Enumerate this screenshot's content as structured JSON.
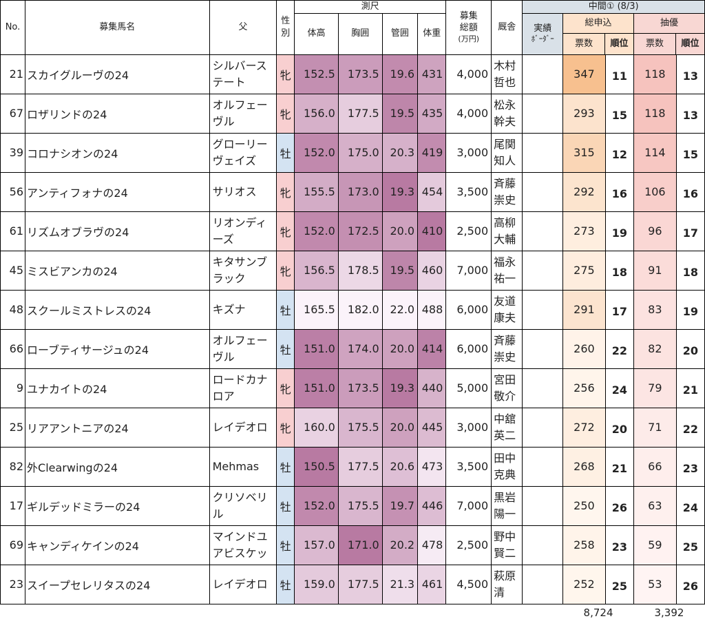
{
  "headers": {
    "no": "No.",
    "name": "募集馬名",
    "sire": "父",
    "sex": "性別",
    "measure": "測尺",
    "height": "体高",
    "girth": "胸囲",
    "cannon": "管囲",
    "weight": "体重",
    "price_top": "募集",
    "price_mid": "総額",
    "price_unit": "(万円)",
    "stable": "厩舎",
    "interim": "中間① (8/3)",
    "record_top": "実績",
    "record_bottom": "ﾎﾞｰﾀﾞｰ",
    "total_apps": "総申込",
    "lottery_pref": "抽優",
    "votes": "票数",
    "rank": "順位"
  },
  "colors": {
    "mare_sex": "#f8cfd0",
    "colt_sex": "#d4e3f2",
    "interim_header": "#d9e1e8",
    "total_header": "#fde3cc",
    "lottery_header": "#f8d7d3"
  },
  "rows": [
    {
      "no": "21",
      "name": "スカイグルーヴの24",
      "sire": "シルバーステート",
      "sex": "牝",
      "height": "152.5",
      "girth": "173.5",
      "cannon": "19.6",
      "weight": "431",
      "price": "4,000",
      "stable": "木村哲也",
      "votes": "347",
      "rank": "11",
      "lvotes": "118",
      "lrank": "13"
    },
    {
      "no": "67",
      "name": "ロザリンドの24",
      "sire": "オルフェーヴル",
      "sex": "牝",
      "height": "156.0",
      "girth": "177.5",
      "cannon": "19.5",
      "weight": "435",
      "price": "4,000",
      "stable": "松永幹夫",
      "votes": "293",
      "rank": "15",
      "lvotes": "118",
      "lrank": "13"
    },
    {
      "no": "39",
      "name": "コロナシオンの24",
      "sire": "グローリーヴェイズ",
      "sex": "牡",
      "height": "152.0",
      "girth": "175.0",
      "cannon": "20.3",
      "weight": "419",
      "price": "3,000",
      "stable": "尾関知人",
      "votes": "315",
      "rank": "12",
      "lvotes": "114",
      "lrank": "15"
    },
    {
      "no": "56",
      "name": "アンティフォナの24",
      "sire": "サリオス",
      "sex": "牝",
      "height": "155.5",
      "girth": "173.0",
      "cannon": "19.3",
      "weight": "454",
      "price": "3,500",
      "stable": "斉藤崇史",
      "votes": "292",
      "rank": "16",
      "lvotes": "106",
      "lrank": "16"
    },
    {
      "no": "61",
      "name": "リズムオブラヴの24",
      "sire": "リオンディーズ",
      "sex": "牝",
      "height": "152.0",
      "girth": "172.5",
      "cannon": "20.0",
      "weight": "410",
      "price": "2,500",
      "stable": "高柳大輔",
      "votes": "273",
      "rank": "19",
      "lvotes": "96",
      "lrank": "17"
    },
    {
      "no": "45",
      "name": "ミスビアンカの24",
      "sire": "キタサンブラック",
      "sex": "牝",
      "height": "156.5",
      "girth": "178.5",
      "cannon": "19.5",
      "weight": "460",
      "price": "7,000",
      "stable": "福永祐一",
      "votes": "275",
      "rank": "18",
      "lvotes": "91",
      "lrank": "18"
    },
    {
      "no": "48",
      "name": "スクールミストレスの24",
      "sire": "キズナ",
      "sex": "牡",
      "height": "165.5",
      "girth": "182.0",
      "cannon": "22.0",
      "weight": "488",
      "price": "6,000",
      "stable": "友道康夫",
      "votes": "291",
      "rank": "17",
      "lvotes": "83",
      "lrank": "19"
    },
    {
      "no": "66",
      "name": "ローブティサージュの24",
      "sire": "オルフェーヴル",
      "sex": "牡",
      "height": "151.0",
      "girth": "174.0",
      "cannon": "20.0",
      "weight": "414",
      "price": "6,000",
      "stable": "斉藤崇史",
      "votes": "260",
      "rank": "22",
      "lvotes": "82",
      "lrank": "20"
    },
    {
      "no": "9",
      "name": "ユナカイトの24",
      "sire": "ロードカナロア",
      "sex": "牝",
      "height": "151.0",
      "girth": "173.5",
      "cannon": "19.3",
      "weight": "440",
      "price": "5,000",
      "stable": "宮田敬介",
      "votes": "256",
      "rank": "24",
      "lvotes": "79",
      "lrank": "21"
    },
    {
      "no": "25",
      "name": "リアアントニアの24",
      "sire": "レイデオロ",
      "sex": "牝",
      "height": "160.0",
      "girth": "175.5",
      "cannon": "20.0",
      "weight": "445",
      "price": "3,000",
      "stable": "中舘英二",
      "votes": "272",
      "rank": "20",
      "lvotes": "71",
      "lrank": "22"
    },
    {
      "no": "82",
      "name": "外Clearwingの24",
      "sire": "Mehmas",
      "sex": "牡",
      "height": "150.5",
      "girth": "177.5",
      "cannon": "20.6",
      "weight": "473",
      "price": "3,500",
      "stable": "田中克典",
      "votes": "268",
      "rank": "21",
      "lvotes": "66",
      "lrank": "23"
    },
    {
      "no": "17",
      "name": "ギルデッドミラーの24",
      "sire": "クリソベリル",
      "sex": "牡",
      "height": "152.0",
      "girth": "175.5",
      "cannon": "19.7",
      "weight": "446",
      "price": "7,000",
      "stable": "黒岩陽一",
      "votes": "250",
      "rank": "26",
      "lvotes": "63",
      "lrank": "24"
    },
    {
      "no": "69",
      "name": "キャンディケインの24",
      "sire": "マインドユアビスケッ",
      "sex": "牡",
      "height": "157.0",
      "girth": "171.0",
      "cannon": "20.2",
      "weight": "478",
      "price": "2,500",
      "stable": "野中賢二",
      "votes": "258",
      "rank": "23",
      "lvotes": "59",
      "lrank": "25"
    },
    {
      "no": "23",
      "name": "スイープセレリタスの24",
      "sire": "レイデオロ",
      "sex": "牡",
      "height": "159.0",
      "girth": "177.5",
      "cannon": "21.3",
      "weight": "461",
      "price": "4,500",
      "stable": "萩原清",
      "votes": "252",
      "rank": "25",
      "lvotes": "53",
      "lrank": "26"
    }
  ],
  "totals": {
    "votes": "8,724",
    "lvotes": "3,392"
  }
}
